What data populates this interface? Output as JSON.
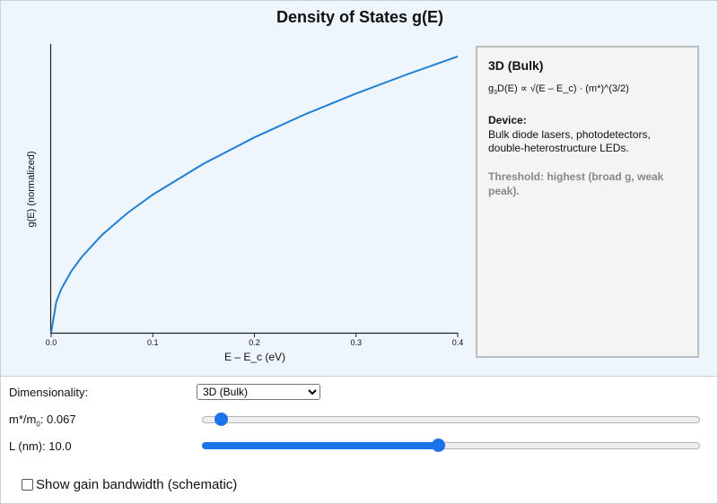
{
  "title": "Density of States g(E)",
  "chart_data": {
    "type": "line",
    "xlabel": "E – E_c (eV)",
    "ylabel": "g(E) (normalized)",
    "xlim": [
      0,
      0.4
    ],
    "x_ticks": [
      "0.0",
      "0.1",
      "0.2",
      "0.3",
      "0.4"
    ],
    "grid": false,
    "series": [
      {
        "color": "#1f7fd4",
        "x": [
          0,
          0.005,
          0.01,
          0.02,
          0.03,
          0.05,
          0.075,
          0.1,
          0.15,
          0.2,
          0.25,
          0.3,
          0.35,
          0.4
        ],
        "y": [
          0,
          0.112,
          0.158,
          0.224,
          0.274,
          0.354,
          0.433,
          0.5,
          0.612,
          0.707,
          0.791,
          0.866,
          0.935,
          1.0
        ]
      }
    ]
  },
  "info": {
    "title": "3D (Bulk)",
    "formula_prefix": "g",
    "formula_sub": "3",
    "formula_rest": "D(E) ∝ √(E – E_c) · (m*)^(3/2)",
    "device_label": "Device:",
    "device_text": "Bulk diode lasers, photodetectors, double-heterostructure LEDs.",
    "threshold": "Threshold: highest (broad g, weak peak)."
  },
  "controls": {
    "dimensionality_label": "Dimensionality:",
    "dimensionality_value": "3D (Bulk)",
    "mass_label_pre": "m*/m",
    "mass_label_sub": "0",
    "mass_label_post": ": 0.067",
    "mass_fraction": 0.025,
    "length_label": "L (nm): 10.0",
    "length_fraction": 0.474,
    "gain_label": "Show gain bandwidth (schematic)",
    "gain_checked": false
  }
}
